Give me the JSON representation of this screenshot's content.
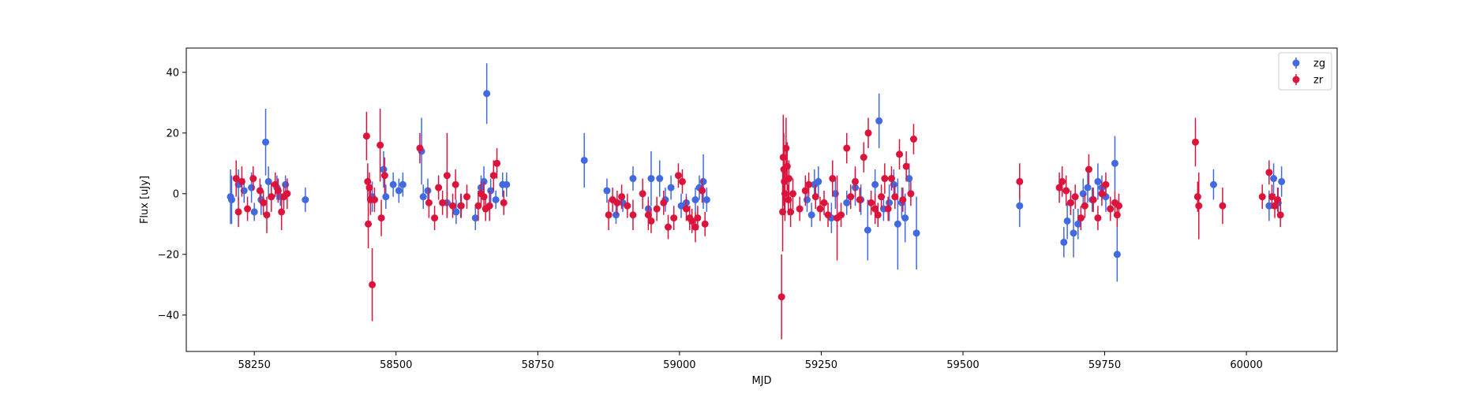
{
  "chart_data": {
    "type": "scatter",
    "title": "",
    "xlabel": "MJD",
    "ylabel": "Flux [uJy]",
    "xlim": [
      58130,
      60160
    ],
    "ylim": [
      -52,
      48
    ],
    "xticks": [
      58250,
      58500,
      58750,
      59000,
      59250,
      59500,
      59750,
      60000
    ],
    "yticks": [
      -40,
      -20,
      0,
      20,
      40
    ],
    "grid": false,
    "legend": {
      "position": "top-right"
    },
    "series": [
      {
        "name": "zg",
        "color": "#4169e1",
        "points": [
          [
            58208,
            -1,
            9
          ],
          [
            58210,
            -2,
            8
          ],
          [
            58222,
            3,
            5
          ],
          [
            58232,
            1,
            4
          ],
          [
            58245,
            2,
            5
          ],
          [
            58250,
            -6,
            3
          ],
          [
            58262,
            -2,
            5
          ],
          [
            58270,
            17,
            11
          ],
          [
            58275,
            4,
            5
          ],
          [
            58280,
            -1,
            4
          ],
          [
            58290,
            2,
            4
          ],
          [
            58296,
            -1,
            3
          ],
          [
            58305,
            3,
            3
          ],
          [
            58340,
            -2,
            4
          ],
          [
            58458,
            -1,
            5
          ],
          [
            58478,
            8,
            6
          ],
          [
            58482,
            -1,
            4
          ],
          [
            58495,
            3,
            4
          ],
          [
            58505,
            1,
            4
          ],
          [
            58512,
            3,
            4
          ],
          [
            58545,
            14,
            11
          ],
          [
            58548,
            -1,
            4
          ],
          [
            58556,
            1,
            4
          ],
          [
            58590,
            -3,
            5
          ],
          [
            58606,
            -6,
            4
          ],
          [
            58614,
            -4,
            4
          ],
          [
            58640,
            -8,
            4
          ],
          [
            58650,
            2,
            4
          ],
          [
            58655,
            4,
            5
          ],
          [
            58660,
            33,
            10
          ],
          [
            58667,
            1,
            4
          ],
          [
            58676,
            -2,
            3
          ],
          [
            58688,
            3,
            4
          ],
          [
            58695,
            3,
            4
          ],
          [
            58832,
            11,
            9
          ],
          [
            58872,
            1,
            4
          ],
          [
            58888,
            -7,
            3
          ],
          [
            58900,
            -3,
            3
          ],
          [
            58918,
            5,
            4
          ],
          [
            58945,
            -5,
            4
          ],
          [
            58950,
            5,
            9
          ],
          [
            58965,
            5,
            6
          ],
          [
            58975,
            -2,
            4
          ],
          [
            58985,
            2,
            4
          ],
          [
            59003,
            -4,
            4
          ],
          [
            59012,
            -3,
            3
          ],
          [
            59028,
            -2,
            4
          ],
          [
            59035,
            2,
            4
          ],
          [
            59042,
            4,
            9
          ],
          [
            59048,
            -2,
            4
          ],
          [
            59225,
            -2,
            4
          ],
          [
            59233,
            -7,
            4
          ],
          [
            59238,
            3,
            5
          ],
          [
            59245,
            4,
            5
          ],
          [
            59268,
            -8,
            5
          ],
          [
            59275,
            0,
            5
          ],
          [
            59295,
            -3,
            4
          ],
          [
            59310,
            2,
            6
          ],
          [
            59320,
            -2,
            5
          ],
          [
            59332,
            -12,
            10
          ],
          [
            59345,
            3,
            5
          ],
          [
            59352,
            24,
            9
          ],
          [
            59360,
            -5,
            4
          ],
          [
            59370,
            -3,
            6
          ],
          [
            59378,
            3,
            5
          ],
          [
            59385,
            -10,
            15
          ],
          [
            59392,
            -3,
            5
          ],
          [
            59398,
            -8,
            8
          ],
          [
            59405,
            5,
            5
          ],
          [
            59418,
            -13,
            12
          ],
          [
            59600,
            -4,
            7
          ],
          [
            59678,
            -16,
            5
          ],
          [
            59684,
            -9,
            6
          ],
          [
            59690,
            -3,
            4
          ],
          [
            59695,
            -13,
            8
          ],
          [
            59703,
            -10,
            5
          ],
          [
            59712,
            0,
            5
          ],
          [
            59720,
            2,
            5
          ],
          [
            59728,
            -2,
            4
          ],
          [
            59738,
            4,
            6
          ],
          [
            59745,
            2,
            4
          ],
          [
            59752,
            -1,
            5
          ],
          [
            59760,
            -5,
            3
          ],
          [
            59768,
            10,
            9
          ],
          [
            59772,
            -20,
            9
          ],
          [
            59942,
            3,
            5
          ],
          [
            60040,
            -4,
            5
          ],
          [
            60048,
            5,
            5
          ],
          [
            60056,
            -3,
            5
          ],
          [
            60062,
            4,
            5
          ]
        ]
      },
      {
        "name": "zr",
        "color": "#dc143c",
        "points": [
          [
            58218,
            5,
            6
          ],
          [
            58222,
            -6,
            5
          ],
          [
            58228,
            4,
            5
          ],
          [
            58238,
            -5,
            4
          ],
          [
            58248,
            5,
            4
          ],
          [
            58260,
            1,
            4
          ],
          [
            58266,
            -3,
            4
          ],
          [
            58272,
            -7,
            6
          ],
          [
            58280,
            -1,
            5
          ],
          [
            58287,
            3,
            4
          ],
          [
            58292,
            1,
            4
          ],
          [
            58298,
            -6,
            6
          ],
          [
            58302,
            -1,
            4
          ],
          [
            58308,
            0,
            5
          ],
          [
            58448,
            19,
            8
          ],
          [
            58450,
            4,
            6
          ],
          [
            58451,
            -10,
            8
          ],
          [
            58453,
            2,
            5
          ],
          [
            58455,
            -2,
            5
          ],
          [
            58458,
            -30,
            12
          ],
          [
            58462,
            -2,
            4
          ],
          [
            58472,
            16,
            12
          ],
          [
            58474,
            -8,
            6
          ],
          [
            58480,
            6,
            6
          ],
          [
            58542,
            15,
            5
          ],
          [
            58558,
            -3,
            5
          ],
          [
            58568,
            -8,
            4
          ],
          [
            58575,
            2,
            4
          ],
          [
            58582,
            -3,
            4
          ],
          [
            58590,
            6,
            14
          ],
          [
            58600,
            -4,
            4
          ],
          [
            58605,
            3,
            5
          ],
          [
            58615,
            -4,
            4
          ],
          [
            58625,
            -1,
            4
          ],
          [
            58645,
            -4,
            5
          ],
          [
            58650,
            0,
            4
          ],
          [
            58655,
            -1,
            5
          ],
          [
            58658,
            -5,
            4
          ],
          [
            58665,
            -4,
            5
          ],
          [
            58672,
            6,
            5
          ],
          [
            58678,
            10,
            5
          ],
          [
            58690,
            -3,
            4
          ],
          [
            58875,
            -7,
            5
          ],
          [
            58882,
            -2,
            4
          ],
          [
            58890,
            -3,
            4
          ],
          [
            58898,
            -1,
            4
          ],
          [
            58908,
            -4,
            4
          ],
          [
            58918,
            -7,
            5
          ],
          [
            58935,
            0,
            5
          ],
          [
            58945,
            -7,
            5
          ],
          [
            58950,
            -9,
            4
          ],
          [
            58960,
            -5,
            4
          ],
          [
            58972,
            -3,
            4
          ],
          [
            58980,
            -11,
            4
          ],
          [
            58990,
            -8,
            4
          ],
          [
            58998,
            6,
            4
          ],
          [
            59005,
            4,
            4
          ],
          [
            59012,
            -5,
            4
          ],
          [
            59018,
            -8,
            4
          ],
          [
            59022,
            -9,
            4
          ],
          [
            59028,
            -11,
            5
          ],
          [
            59032,
            -8,
            4
          ],
          [
            59040,
            1,
            4
          ],
          [
            59045,
            -10,
            4
          ],
          [
            59180,
            -34,
            14
          ],
          [
            59182,
            -6,
            13
          ],
          [
            59183,
            12,
            14
          ],
          [
            59184,
            8,
            12
          ],
          [
            59185,
            4,
            10
          ],
          [
            59186,
            0,
            9
          ],
          [
            59188,
            15,
            10
          ],
          [
            59190,
            9,
            8
          ],
          [
            59192,
            -2,
            5
          ],
          [
            59193,
            5,
            6
          ],
          [
            59196,
            -6,
            5
          ],
          [
            59200,
            0,
            5
          ],
          [
            59212,
            -5,
            4
          ],
          [
            59222,
            1,
            5
          ],
          [
            59228,
            3,
            4
          ],
          [
            59240,
            -1,
            4
          ],
          [
            59248,
            -5,
            4
          ],
          [
            59255,
            -3,
            4
          ],
          [
            59262,
            -7,
            4
          ],
          [
            59270,
            5,
            6
          ],
          [
            59278,
            -8,
            14
          ],
          [
            59285,
            -7,
            4
          ],
          [
            59295,
            15,
            5
          ],
          [
            59302,
            -1,
            4
          ],
          [
            59310,
            4,
            5
          ],
          [
            59318,
            -2,
            4
          ],
          [
            59325,
            12,
            5
          ],
          [
            59333,
            20,
            5
          ],
          [
            59338,
            -3,
            4
          ],
          [
            59345,
            -5,
            5
          ],
          [
            59350,
            -7,
            4
          ],
          [
            59356,
            -1,
            4
          ],
          [
            59362,
            5,
            5
          ],
          [
            59368,
            -5,
            4
          ],
          [
            59374,
            5,
            4
          ],
          [
            59380,
            -1,
            4
          ],
          [
            59388,
            13,
            5
          ],
          [
            59394,
            -2,
            4
          ],
          [
            59400,
            9,
            5
          ],
          [
            59408,
            0,
            4
          ],
          [
            59413,
            18,
            5
          ],
          [
            59600,
            4,
            6
          ],
          [
            59670,
            2,
            5
          ],
          [
            59675,
            4,
            5
          ],
          [
            59682,
            1,
            5
          ],
          [
            59690,
            -3,
            4
          ],
          [
            59698,
            -1,
            4
          ],
          [
            59708,
            -8,
            4
          ],
          [
            59715,
            -4,
            4
          ],
          [
            59722,
            8,
            5
          ],
          [
            59730,
            -2,
            4
          ],
          [
            59738,
            -8,
            4
          ],
          [
            59745,
            0,
            4
          ],
          [
            59752,
            3,
            4
          ],
          [
            59760,
            -5,
            4
          ],
          [
            59768,
            -3,
            4
          ],
          [
            59772,
            -7,
            4
          ],
          [
            59775,
            -4,
            4
          ],
          [
            59910,
            17,
            8
          ],
          [
            59914,
            -1,
            5
          ],
          [
            59916,
            -4,
            11
          ],
          [
            59958,
            -4,
            6
          ],
          [
            60028,
            -1,
            4
          ],
          [
            60040,
            7,
            4
          ],
          [
            60045,
            -1,
            4
          ],
          [
            60050,
            -4,
            4
          ],
          [
            60055,
            -2,
            4
          ],
          [
            60060,
            -7,
            4
          ]
        ]
      }
    ]
  }
}
